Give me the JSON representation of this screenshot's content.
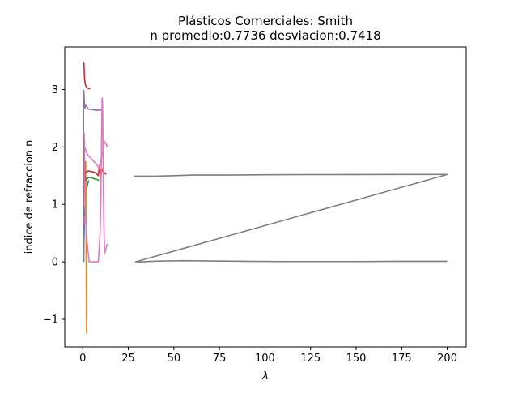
{
  "chart_data": {
    "type": "line",
    "title": "Plásticos Comerciales: Smith",
    "subtitle": "n promedio:0.7736 desviacion:0.7418",
    "xlabel": "λ",
    "ylabel": "indice de refraccion n",
    "xlim": [
      -9.9,
      210.4
    ],
    "ylim": [
      -1.48,
      3.74
    ],
    "xticks": [
      0,
      25,
      50,
      75,
      100,
      125,
      150,
      175,
      200
    ],
    "yticks": [
      -1,
      0,
      1,
      2,
      3
    ],
    "grid": false,
    "series": [
      {
        "color": "#1f77b4",
        "x": [
          0.4,
          0.6,
          0.9,
          1.2,
          1.6,
          2.0,
          2.6,
          3.2
        ],
        "y": [
          0.0,
          0.3,
          0.7,
          0.95,
          1.1,
          1.25,
          1.35,
          1.42
        ]
      },
      {
        "color": "#ff7f0e",
        "x": [
          1.6,
          1.7,
          1.8,
          1.9,
          2.0,
          2.1
        ],
        "y": [
          1.75,
          1.2,
          0.5,
          -0.2,
          -0.8,
          -1.25
        ]
      },
      {
        "color": "#2ca02c",
        "x": [
          2.2,
          3.0,
          4.0,
          5.0,
          6.0,
          7.0,
          8.0,
          9.0
        ],
        "y": [
          1.44,
          1.46,
          1.47,
          1.46,
          1.45,
          1.44,
          1.43,
          1.42
        ]
      },
      {
        "color": "#d62728",
        "x": [
          0.6,
          0.8,
          1.0,
          1.3,
          1.7,
          2.2,
          3.0,
          4.0
        ],
        "y": [
          3.47,
          3.3,
          3.18,
          3.1,
          3.06,
          3.03,
          3.02,
          3.01
        ]
      },
      {
        "color": "#d62728",
        "x": [
          1.5,
          3.0,
          5.0,
          7.0,
          8.5,
          9.2,
          9.8,
          10.5,
          11.5,
          12.8
        ],
        "y": [
          1.55,
          1.58,
          1.57,
          1.55,
          1.5,
          1.68,
          1.45,
          1.62,
          1.56,
          1.52
        ]
      },
      {
        "color": "#9467bd",
        "x": [
          0.6,
          0.8,
          1.0,
          1.2,
          1.6,
          2.2,
          3.0,
          5.0,
          7.0,
          9.0,
          10.5
        ],
        "y": [
          2.97,
          2.8,
          2.7,
          2.68,
          2.74,
          2.7,
          2.66,
          2.65,
          2.64,
          2.64,
          2.64
        ]
      },
      {
        "color": "#8c564b",
        "x": [
          0.3,
          0.5,
          0.7,
          0.9,
          1.1,
          1.3,
          1.6,
          2.2,
          3.0
        ],
        "y": [
          1.35,
          1.9,
          2.12,
          1.8,
          1.6,
          1.45,
          1.42,
          1.45,
          1.48
        ]
      },
      {
        "color": "#e377c2",
        "x": [
          0.7,
          0.9,
          1.1,
          1.4,
          1.9,
          2.5,
          3.5,
          5.0,
          7.0,
          8.5,
          9.5,
          10.0,
          10.3,
          10.6,
          10.9,
          11.2,
          11.6,
          12.0,
          12.5,
          13.3,
          13.6
        ],
        "y": [
          2.25,
          1.7,
          1.25,
          0.9,
          0.55,
          0.3,
          0.0,
          0.0,
          0.0,
          0.0,
          0.5,
          1.2,
          2.2,
          2.85,
          2.7,
          1.5,
          0.6,
          0.15,
          0.2,
          0.3,
          0.28
        ]
      },
      {
        "color": "#e377c2",
        "x": [
          1.0,
          1.5,
          2.0,
          3.0,
          4.5,
          6.0,
          7.5,
          9.0,
          10.5,
          11.8,
          12.8,
          13.5
        ],
        "y": [
          2.0,
          1.95,
          1.9,
          1.85,
          1.8,
          1.75,
          1.7,
          1.62,
          1.85,
          2.1,
          2.05,
          2.0
        ]
      },
      {
        "color": "#e377c2",
        "x": [
          0.4,
          0.6,
          0.8,
          1.0,
          1.3
        ],
        "y": [
          0.6,
          0.7,
          0.8,
          0.7,
          0.65
        ]
      },
      {
        "color": "#7f7f7f",
        "x": [
          28,
          31,
          35,
          40,
          50,
          60,
          80,
          100,
          125,
          150,
          175,
          200,
          29,
          33,
          38,
          45,
          55,
          70,
          90,
          110,
          130,
          150,
          175,
          200
        ],
        "y": [
          1.49,
          1.49,
          1.49,
          1.49,
          1.5,
          1.51,
          1.51,
          1.515,
          1.518,
          1.519,
          1.52,
          1.52,
          0.0,
          0.0,
          0.01,
          0.015,
          0.02,
          0.015,
          0.01,
          0.005,
          0.005,
          0.005,
          0.01,
          0.01
        ]
      },
      {
        "color": "#7f7f7f",
        "x": [
          0.3,
          0.4,
          0.5,
          0.6
        ],
        "y": [
          3.0,
          2.5,
          1.0,
          0.0
        ]
      }
    ]
  }
}
